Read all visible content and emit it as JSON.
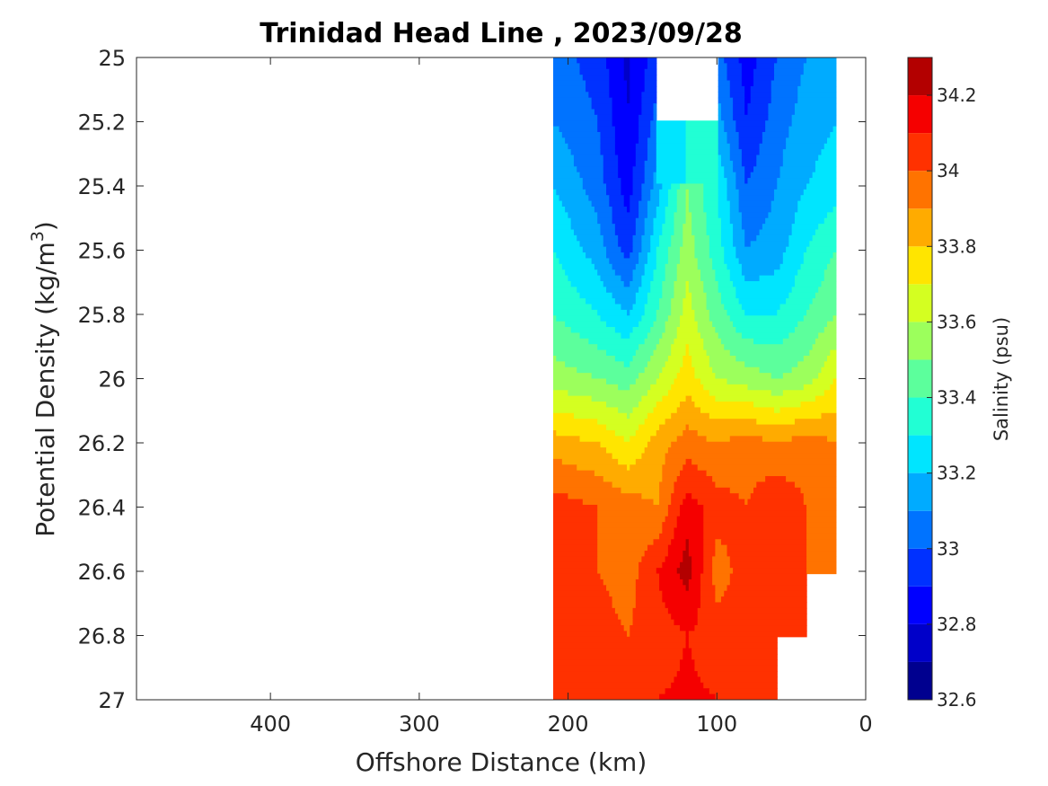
{
  "chart_data": {
    "type": "heatmap",
    "subtype": "filled-contour",
    "title": "Trinidad Head Line , 2023/09/28",
    "xlabel": "Offshore Distance (km)",
    "ylabel_prefix": "Potential Density (kg/m",
    "ylabel_sup": "3",
    "ylabel_suffix": ")",
    "xlim": [
      490,
      0
    ],
    "x_reversed": true,
    "ylim": [
      25,
      27
    ],
    "y_reversed": true,
    "xticks": [
      400,
      300,
      200,
      100,
      0
    ],
    "xtick_labels": [
      "400",
      "300",
      "200",
      "100",
      "0"
    ],
    "yticks": [
      25,
      25.2,
      25.4,
      25.6,
      25.8,
      26,
      26.2,
      26.4,
      26.6,
      26.8,
      27
    ],
    "ytick_labels": [
      "25",
      "25.2",
      "25.4",
      "25.6",
      "25.8",
      "26",
      "26.2",
      "26.4",
      "26.6",
      "26.8",
      "27"
    ],
    "colorbar": {
      "label": "Salinity (psu)",
      "range": [
        32.6,
        34.3
      ],
      "levels": [
        32.6,
        32.7,
        32.8,
        32.9,
        33.0,
        33.1,
        33.2,
        33.3,
        33.4,
        33.5,
        33.6,
        33.7,
        33.8,
        33.9,
        34.0,
        34.1,
        34.2,
        34.3
      ],
      "ticks": [
        32.6,
        32.8,
        33,
        33.2,
        33.4,
        33.6,
        33.8,
        34,
        34.2
      ],
      "tick_labels": [
        "32.6",
        "32.8",
        "33",
        "33.2",
        "33.4",
        "33.6",
        "33.8",
        "34",
        "34.2"
      ],
      "colors": [
        "#00008f",
        "#0000c9",
        "#0000ff",
        "#0031ff",
        "#0073ff",
        "#00abff",
        "#00e5ff",
        "#21ffd4",
        "#5cff9c",
        "#9cff5c",
        "#d4ff21",
        "#ffe500",
        "#ffab00",
        "#ff7300",
        "#ff3100",
        "#f50000",
        "#b30000"
      ]
    },
    "distance_km": [
      210,
      180,
      160,
      140,
      120,
      100,
      80,
      60,
      40,
      20
    ],
    "density": [
      25.0,
      25.2,
      25.4,
      25.6,
      25.8,
      26.0,
      26.2,
      26.4,
      26.6,
      26.8,
      27.0
    ],
    "salinity_grid": [
      [
        33.05,
        32.95,
        32.78,
        32.95,
        null,
        33.05,
        32.85,
        33.0,
        33.1,
        33.15
      ],
      [
        33.1,
        33.0,
        32.8,
        33.05,
        null,
        33.15,
        32.9,
        33.05,
        33.15,
        33.2
      ],
      [
        33.2,
        33.05,
        32.85,
        33.15,
        33.5,
        33.3,
        33.0,
        33.1,
        33.2,
        33.25
      ],
      [
        33.3,
        33.15,
        32.95,
        33.3,
        33.55,
        33.35,
        33.1,
        33.15,
        33.3,
        33.4
      ],
      [
        33.4,
        33.3,
        33.2,
        33.4,
        33.65,
        33.45,
        33.3,
        33.3,
        33.4,
        33.5
      ],
      [
        33.55,
        33.5,
        33.45,
        33.6,
        33.75,
        33.6,
        33.55,
        33.5,
        33.55,
        33.7
      ],
      [
        33.85,
        33.8,
        33.7,
        33.85,
        33.95,
        33.9,
        33.95,
        33.9,
        33.95,
        33.9
      ],
      [
        34.05,
        34.0,
        33.95,
        33.9,
        34.15,
        34.05,
        34.0,
        34.1,
        34.0,
        33.95
      ],
      [
        34.05,
        34.0,
        33.95,
        34.1,
        34.25,
        33.95,
        34.05,
        34.05,
        34.0,
        null
      ],
      [
        34.05,
        34.05,
        34.0,
        34.05,
        34.1,
        34.05,
        34.05,
        34.05,
        34.05,
        null
      ],
      [
        null,
        34.05,
        34.05,
        34.1,
        34.12,
        34.1,
        34.05,
        null,
        null,
        null
      ]
    ]
  }
}
